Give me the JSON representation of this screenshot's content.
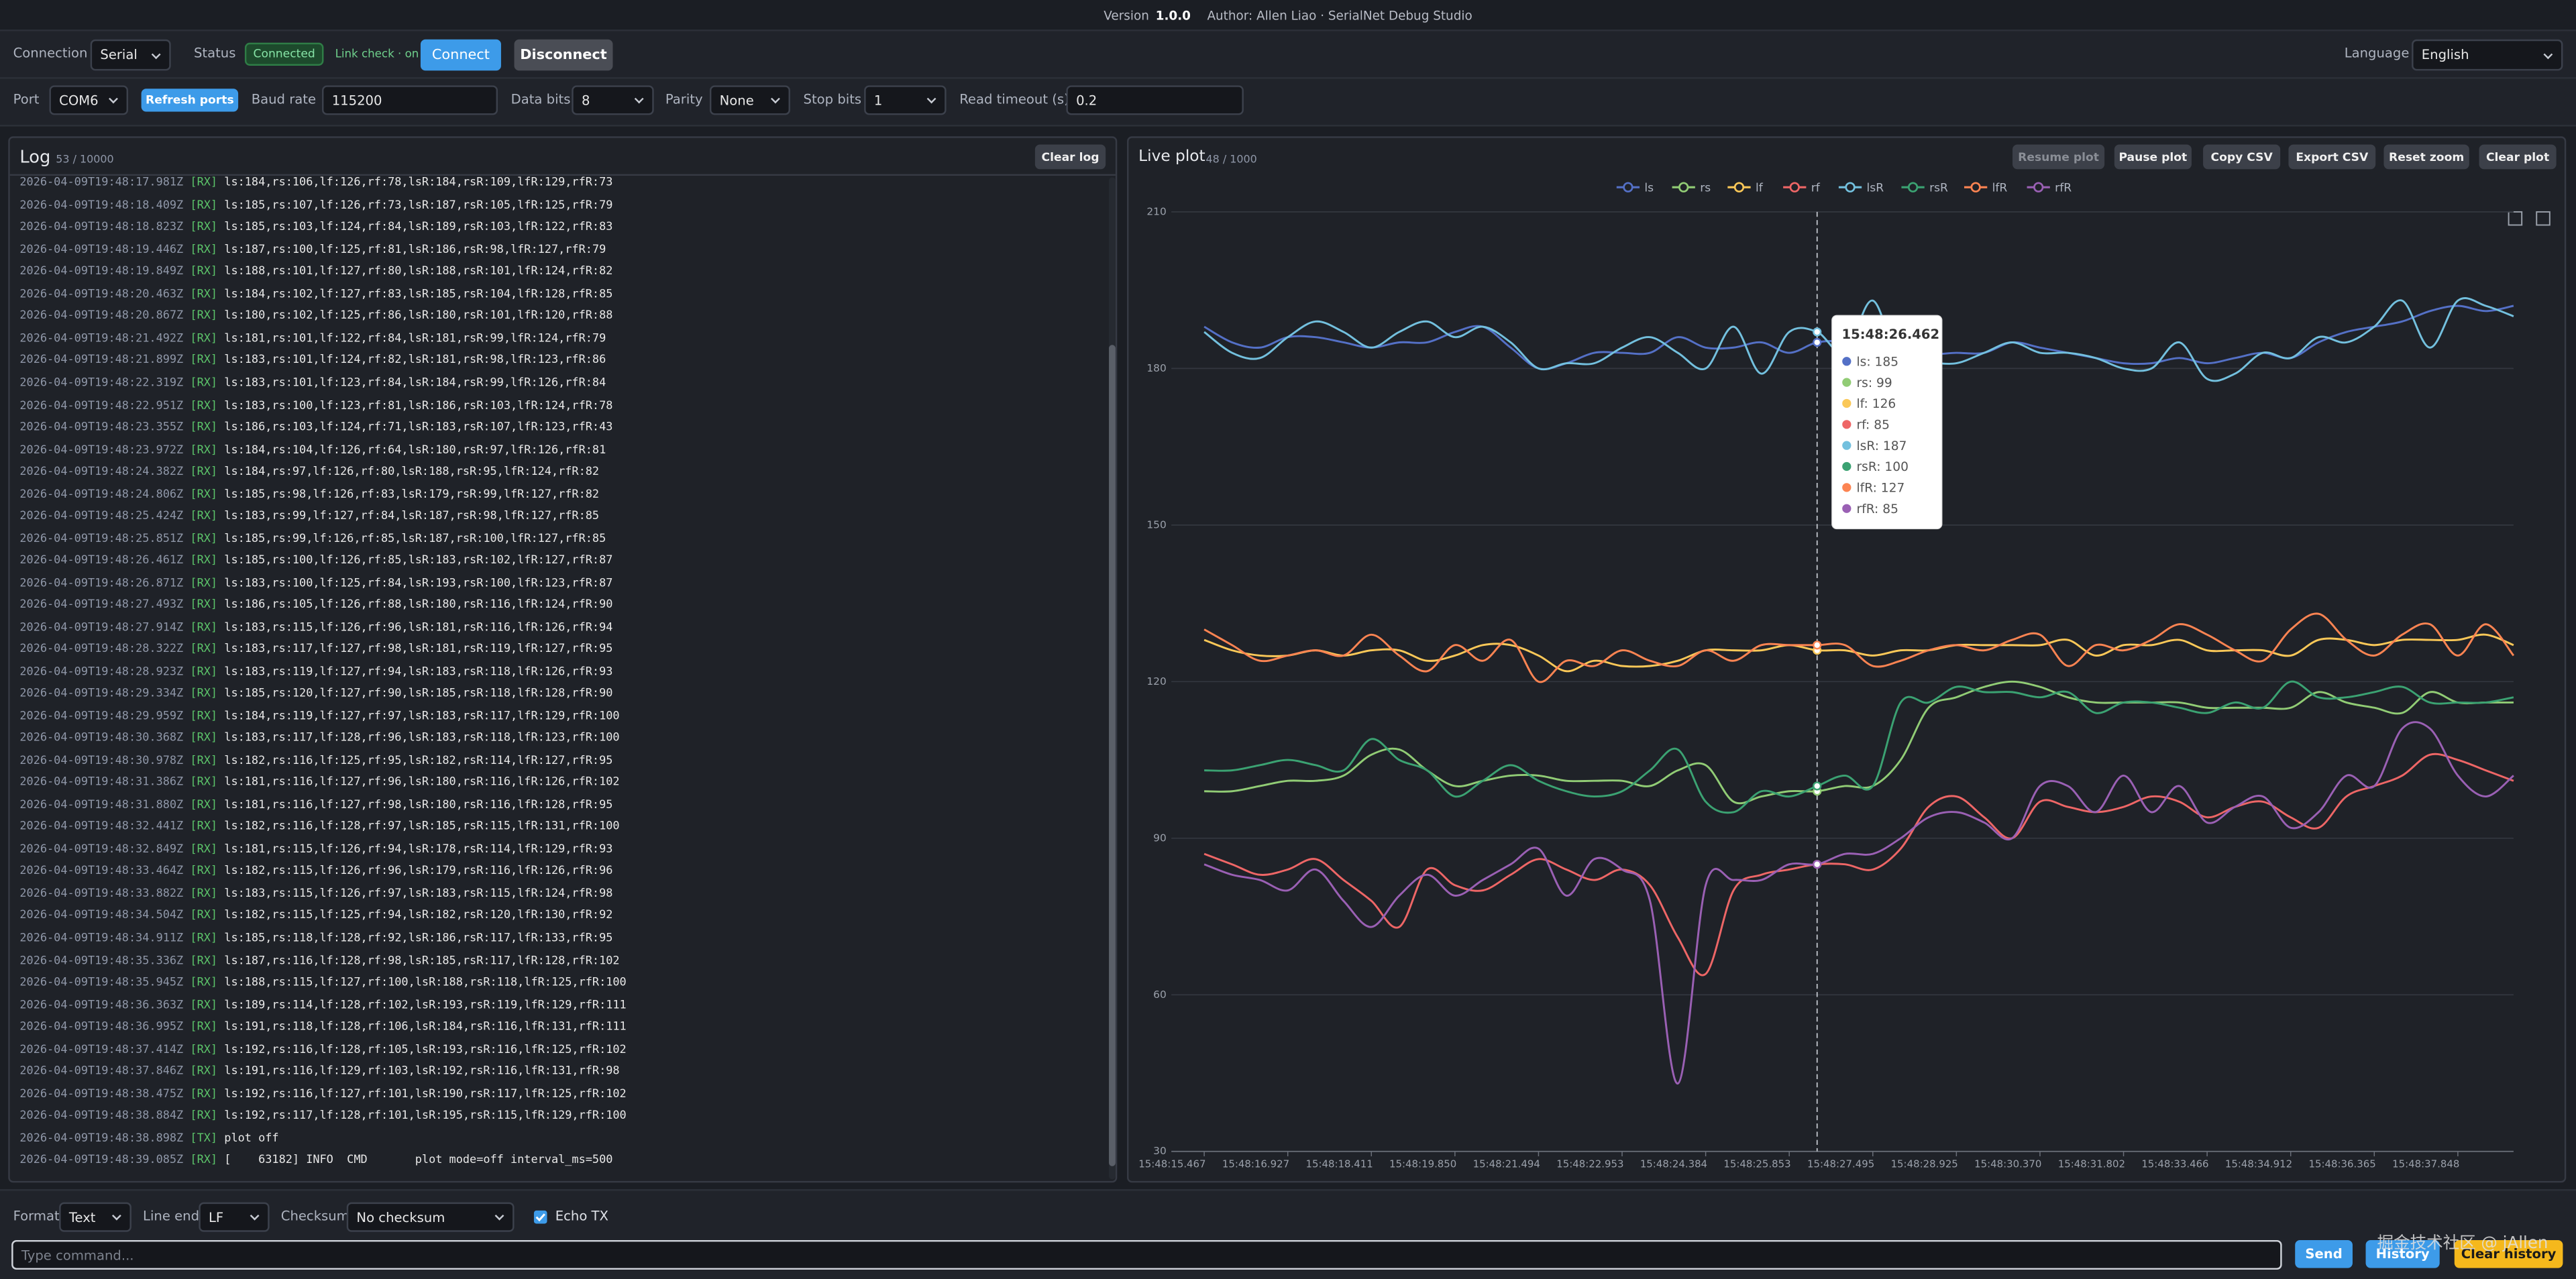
{
  "header": {
    "version_label": "Version",
    "version": "1.0.0",
    "author": "Author: Allen Liao · SerialNet Debug Studio"
  },
  "connection": {
    "label": "Connection",
    "mode": "Serial",
    "status_label": "Status",
    "status": "Connected",
    "link_check": "Link check · on",
    "connect": "Connect",
    "disconnect": "Disconnect",
    "language_label": "Language",
    "language": "English"
  },
  "port_settings": {
    "port_label": "Port",
    "port": "COM6",
    "refresh": "Refresh ports",
    "baud_label": "Baud rate",
    "baud": "115200",
    "data_bits_label": "Data bits",
    "data_bits": "8",
    "parity_label": "Parity",
    "parity": "None",
    "stop_bits_label": "Stop bits",
    "stop_bits": "1",
    "timeout_label": "Read timeout (s)",
    "timeout": "0.2"
  },
  "log": {
    "title": "Log",
    "count": "53 / 10000",
    "clear": "Clear log",
    "lines": [
      {
        "time": "2026-04-09T19:48:17.981Z",
        "dir": "[RX]",
        "text": "ls:184,rs:106,lf:126,rf:78,lsR:184,rsR:109,lfR:129,rfR:73"
      },
      {
        "time": "2026-04-09T19:48:18.409Z",
        "dir": "[RX]",
        "text": "ls:185,rs:107,lf:126,rf:73,lsR:187,rsR:105,lfR:125,rfR:79"
      },
      {
        "time": "2026-04-09T19:48:18.823Z",
        "dir": "[RX]",
        "text": "ls:185,rs:103,lf:124,rf:84,lsR:189,rsR:103,lfR:122,rfR:83"
      },
      {
        "time": "2026-04-09T19:48:19.446Z",
        "dir": "[RX]",
        "text": "ls:187,rs:100,lf:125,rf:81,lsR:186,rsR:98,lfR:127,rfR:79"
      },
      {
        "time": "2026-04-09T19:48:19.849Z",
        "dir": "[RX]",
        "text": "ls:188,rs:101,lf:127,rf:80,lsR:188,rsR:101,lfR:124,rfR:82"
      },
      {
        "time": "2026-04-09T19:48:20.463Z",
        "dir": "[RX]",
        "text": "ls:184,rs:102,lf:127,rf:83,lsR:185,rsR:104,lfR:128,rfR:85"
      },
      {
        "time": "2026-04-09T19:48:20.867Z",
        "dir": "[RX]",
        "text": "ls:180,rs:102,lf:125,rf:86,lsR:180,rsR:101,lfR:120,rfR:88"
      },
      {
        "time": "2026-04-09T19:48:21.492Z",
        "dir": "[RX]",
        "text": "ls:181,rs:101,lf:122,rf:84,lsR:181,rsR:99,lfR:124,rfR:79"
      },
      {
        "time": "2026-04-09T19:48:21.899Z",
        "dir": "[RX]",
        "text": "ls:183,rs:101,lf:124,rf:82,lsR:181,rsR:98,lfR:123,rfR:86"
      },
      {
        "time": "2026-04-09T19:48:22.319Z",
        "dir": "[RX]",
        "text": "ls:183,rs:101,lf:123,rf:84,lsR:184,rsR:99,lfR:126,rfR:84"
      },
      {
        "time": "2026-04-09T19:48:22.951Z",
        "dir": "[RX]",
        "text": "ls:183,rs:100,lf:123,rf:81,lsR:186,rsR:103,lfR:124,rfR:78"
      },
      {
        "time": "2026-04-09T19:48:23.355Z",
        "dir": "[RX]",
        "text": "ls:186,rs:103,lf:124,rf:71,lsR:183,rsR:107,lfR:123,rfR:43"
      },
      {
        "time": "2026-04-09T19:48:23.972Z",
        "dir": "[RX]",
        "text": "ls:184,rs:104,lf:126,rf:64,lsR:180,rsR:97,lfR:126,rfR:81"
      },
      {
        "time": "2026-04-09T19:48:24.382Z",
        "dir": "[RX]",
        "text": "ls:184,rs:97,lf:126,rf:80,lsR:188,rsR:95,lfR:124,rfR:82"
      },
      {
        "time": "2026-04-09T19:48:24.806Z",
        "dir": "[RX]",
        "text": "ls:185,rs:98,lf:126,rf:83,lsR:179,rsR:99,lfR:127,rfR:82"
      },
      {
        "time": "2026-04-09T19:48:25.424Z",
        "dir": "[RX]",
        "text": "ls:183,rs:99,lf:127,rf:84,lsR:187,rsR:98,lfR:127,rfR:85"
      },
      {
        "time": "2026-04-09T19:48:25.851Z",
        "dir": "[RX]",
        "text": "ls:185,rs:99,lf:126,rf:85,lsR:187,rsR:100,lfR:127,rfR:85"
      },
      {
        "time": "2026-04-09T19:48:26.461Z",
        "dir": "[RX]",
        "text": "ls:185,rs:100,lf:126,rf:85,lsR:183,rsR:102,lfR:127,rfR:87"
      },
      {
        "time": "2026-04-09T19:48:26.871Z",
        "dir": "[RX]",
        "text": "ls:183,rs:100,lf:125,rf:84,lsR:193,rsR:100,lfR:123,rfR:87"
      },
      {
        "time": "2026-04-09T19:48:27.493Z",
        "dir": "[RX]",
        "text": "ls:186,rs:105,lf:126,rf:88,lsR:180,rsR:116,lfR:124,rfR:90"
      },
      {
        "time": "2026-04-09T19:48:27.914Z",
        "dir": "[RX]",
        "text": "ls:183,rs:115,lf:126,rf:96,lsR:181,rsR:116,lfR:126,rfR:94"
      },
      {
        "time": "2026-04-09T19:48:28.322Z",
        "dir": "[RX]",
        "text": "ls:183,rs:117,lf:127,rf:98,lsR:181,rsR:119,lfR:127,rfR:95"
      },
      {
        "time": "2026-04-09T19:48:28.923Z",
        "dir": "[RX]",
        "text": "ls:183,rs:119,lf:127,rf:94,lsR:183,rsR:118,lfR:126,rfR:93"
      },
      {
        "time": "2026-04-09T19:48:29.334Z",
        "dir": "[RX]",
        "text": "ls:185,rs:120,lf:127,rf:90,lsR:185,rsR:118,lfR:128,rfR:90"
      },
      {
        "time": "2026-04-09T19:48:29.959Z",
        "dir": "[RX]",
        "text": "ls:184,rs:119,lf:127,rf:97,lsR:183,rsR:117,lfR:129,rfR:100"
      },
      {
        "time": "2026-04-09T19:48:30.368Z",
        "dir": "[RX]",
        "text": "ls:183,rs:117,lf:128,rf:96,lsR:183,rsR:118,lfR:123,rfR:100"
      },
      {
        "time": "2026-04-09T19:48:30.978Z",
        "dir": "[RX]",
        "text": "ls:182,rs:116,lf:125,rf:95,lsR:182,rsR:114,lfR:127,rfR:95"
      },
      {
        "time": "2026-04-09T19:48:31.386Z",
        "dir": "[RX]",
        "text": "ls:181,rs:116,lf:127,rf:96,lsR:180,rsR:116,lfR:126,rfR:102"
      },
      {
        "time": "2026-04-09T19:48:31.880Z",
        "dir": "[RX]",
        "text": "ls:181,rs:116,lf:127,rf:98,lsR:180,rsR:116,lfR:128,rfR:95"
      },
      {
        "time": "2026-04-09T19:48:32.441Z",
        "dir": "[RX]",
        "text": "ls:182,rs:116,lf:128,rf:97,lsR:185,rsR:115,lfR:131,rfR:100"
      },
      {
        "time": "2026-04-09T19:48:32.849Z",
        "dir": "[RX]",
        "text": "ls:181,rs:115,lf:126,rf:94,lsR:178,rsR:114,lfR:129,rfR:93"
      },
      {
        "time": "2026-04-09T19:48:33.464Z",
        "dir": "[RX]",
        "text": "ls:182,rs:115,lf:126,rf:96,lsR:179,rsR:116,lfR:126,rfR:96"
      },
      {
        "time": "2026-04-09T19:48:33.882Z",
        "dir": "[RX]",
        "text": "ls:183,rs:115,lf:126,rf:97,lsR:183,rsR:115,lfR:124,rfR:98"
      },
      {
        "time": "2026-04-09T19:48:34.504Z",
        "dir": "[RX]",
        "text": "ls:182,rs:115,lf:125,rf:94,lsR:182,rsR:120,lfR:130,rfR:92"
      },
      {
        "time": "2026-04-09T19:48:34.911Z",
        "dir": "[RX]",
        "text": "ls:185,rs:118,lf:128,rf:92,lsR:186,rsR:117,lfR:133,rfR:95"
      },
      {
        "time": "2026-04-09T19:48:35.336Z",
        "dir": "[RX]",
        "text": "ls:187,rs:116,lf:128,rf:98,lsR:185,rsR:117,lfR:128,rfR:102"
      },
      {
        "time": "2026-04-09T19:48:35.945Z",
        "dir": "[RX]",
        "text": "ls:188,rs:115,lf:127,rf:100,lsR:188,rsR:118,lfR:125,rfR:100"
      },
      {
        "time": "2026-04-09T19:48:36.363Z",
        "dir": "[RX]",
        "text": "ls:189,rs:114,lf:128,rf:102,lsR:193,rsR:119,lfR:129,rfR:111"
      },
      {
        "time": "2026-04-09T19:48:36.995Z",
        "dir": "[RX]",
        "text": "ls:191,rs:118,lf:128,rf:106,lsR:184,rsR:116,lfR:131,rfR:111"
      },
      {
        "time": "2026-04-09T19:48:37.414Z",
        "dir": "[RX]",
        "text": "ls:192,rs:116,lf:128,rf:105,lsR:193,rsR:116,lfR:125,rfR:102"
      },
      {
        "time": "2026-04-09T19:48:37.846Z",
        "dir": "[RX]",
        "text": "ls:191,rs:116,lf:129,rf:103,lsR:192,rsR:116,lfR:131,rfR:98"
      },
      {
        "time": "2026-04-09T19:48:38.475Z",
        "dir": "[RX]",
        "text": "ls:192,rs:116,lf:127,rf:101,lsR:190,rsR:117,lfR:125,rfR:102"
      },
      {
        "time": "2026-04-09T19:48:38.884Z",
        "dir": "[RX]",
        "text": "ls:192,rs:117,lf:128,rf:101,lsR:195,rsR:115,lfR:129,rfR:100"
      },
      {
        "time": "2026-04-09T19:48:38.898Z",
        "dir": "[TX]",
        "text": "plot off"
      },
      {
        "time": "2026-04-09T19:48:39.085Z",
        "dir": "[RX]",
        "text": "[    63182] INFO  CMD       plot mode=off interval_ms=500"
      }
    ]
  },
  "plot_panel": {
    "title": "Live plot",
    "count": "48 / 1000",
    "buttons": [
      "Resume plot",
      "Pause plot",
      "Copy CSV",
      "Export CSV",
      "Reset zoom",
      "Clear plot"
    ]
  },
  "chart_data": {
    "type": "line",
    "smooth": true,
    "grid": true,
    "legend": "top",
    "categories": [
      "15:48:15.467",
      null,
      null,
      "15:48:16.927",
      null,
      null,
      "15:48:18.411",
      null,
      null,
      "15:48:19.850",
      null,
      null,
      "15:48:21.494",
      null,
      null,
      "15:48:22.953",
      null,
      null,
      "15:48:24.384",
      null,
      null,
      "15:48:25.853",
      null,
      null,
      "15:48:27.495",
      null,
      null,
      "15:48:28.925",
      null,
      null,
      "15:48:30.370",
      null,
      null,
      "15:48:31.802",
      null,
      null,
      "15:48:33.466",
      null,
      null,
      "15:48:34.912",
      null,
      null,
      "15:48:36.365",
      null,
      null,
      "15:48:37.848",
      null,
      null
    ],
    "ylim": [
      30,
      210
    ],
    "yticks": [
      30,
      60,
      90,
      120,
      150,
      180,
      210
    ],
    "series": [
      {
        "name": "ls",
        "color": "#5470c6",
        "values": [
          188,
          185,
          184,
          186,
          186,
          185,
          184,
          185,
          185,
          187,
          188,
          184,
          180,
          181,
          183,
          183,
          183,
          186,
          184,
          184,
          185,
          183,
          185,
          185,
          183,
          186,
          183,
          183,
          183,
          185,
          184,
          183,
          182,
          181,
          181,
          182,
          181,
          182,
          183,
          182,
          185,
          187,
          188,
          189,
          191,
          192,
          191,
          192
        ]
      },
      {
        "name": "rs",
        "color": "#91cc75",
        "values": [
          99,
          99,
          100,
          101,
          101,
          102,
          106,
          107,
          103,
          100,
          101,
          102,
          102,
          101,
          101,
          101,
          100,
          103,
          104,
          97,
          98,
          99,
          99,
          100,
          100,
          105,
          115,
          117,
          119,
          120,
          119,
          117,
          116,
          116,
          116,
          116,
          115,
          115,
          115,
          115,
          118,
          116,
          115,
          114,
          118,
          116,
          116,
          116
        ]
      },
      {
        "name": "lf",
        "color": "#fac858",
        "values": [
          128,
          126,
          125,
          125,
          126,
          125,
          126,
          126,
          124,
          125,
          127,
          127,
          125,
          122,
          124,
          123,
          123,
          124,
          126,
          126,
          126,
          127,
          126,
          126,
          125,
          126,
          126,
          127,
          127,
          127,
          127,
          128,
          125,
          127,
          127,
          128,
          126,
          126,
          126,
          125,
          128,
          128,
          127,
          128,
          128,
          128,
          129,
          127
        ]
      },
      {
        "name": "rf",
        "color": "#ee6666",
        "values": [
          87,
          85,
          83,
          84,
          86,
          82,
          78,
          73,
          84,
          81,
          80,
          83,
          86,
          84,
          82,
          84,
          81,
          71,
          64,
          80,
          83,
          84,
          85,
          85,
          84,
          88,
          96,
          98,
          94,
          90,
          97,
          96,
          95,
          96,
          98,
          97,
          94,
          96,
          97,
          94,
          92,
          98,
          100,
          102,
          106,
          105,
          103,
          101
        ]
      },
      {
        "name": "lsR",
        "color": "#73c0de",
        "values": [
          187,
          183,
          182,
          186,
          189,
          187,
          184,
          187,
          189,
          186,
          188,
          185,
          180,
          181,
          181,
          184,
          186,
          183,
          180,
          188,
          179,
          187,
          187,
          183,
          193,
          180,
          181,
          181,
          183,
          185,
          183,
          183,
          182,
          180,
          180,
          185,
          178,
          179,
          183,
          182,
          186,
          185,
          188,
          193,
          184,
          193,
          192,
          190
        ]
      },
      {
        "name": "rsR",
        "color": "#3ba272",
        "values": [
          103,
          103,
          104,
          105,
          104,
          103,
          109,
          105,
          103,
          98,
          101,
          104,
          101,
          99,
          98,
          99,
          103,
          107,
          97,
          95,
          99,
          98,
          100,
          102,
          100,
          116,
          116,
          119,
          118,
          118,
          117,
          118,
          114,
          116,
          116,
          115,
          114,
          116,
          115,
          120,
          117,
          117,
          118,
          119,
          116,
          116,
          116,
          117
        ]
      },
      {
        "name": "lfR",
        "color": "#fc8452",
        "values": [
          130,
          127,
          124,
          125,
          126,
          125,
          129,
          125,
          122,
          127,
          124,
          128,
          120,
          124,
          123,
          126,
          124,
          123,
          126,
          124,
          127,
          127,
          127,
          127,
          123,
          124,
          126,
          127,
          126,
          128,
          129,
          123,
          127,
          126,
          128,
          131,
          129,
          126,
          124,
          130,
          133,
          128,
          125,
          129,
          131,
          125,
          131,
          125
        ]
      },
      {
        "name": "rfR",
        "color": "#9a60b4",
        "values": [
          85,
          83,
          82,
          80,
          84,
          78,
          73,
          79,
          83,
          79,
          82,
          85,
          88,
          79,
          86,
          84,
          78,
          43,
          81,
          82,
          82,
          85,
          85,
          87,
          87,
          90,
          94,
          95,
          93,
          90,
          100,
          100,
          95,
          102,
          95,
          100,
          93,
          96,
          98,
          92,
          95,
          102,
          100,
          111,
          111,
          102,
          98,
          102
        ]
      }
    ],
    "tooltip": {
      "index": 22,
      "title": "15:48:26.462",
      "items": [
        "ls: 185",
        "rs: 99",
        "lf: 126",
        "rf: 85",
        "lsR: 187",
        "rsR: 100",
        "lfR: 127",
        "rfR: 85"
      ]
    }
  },
  "footer": {
    "format_label": "Format",
    "format": "Text",
    "line_end_label": "Line end",
    "line_end": "LF",
    "checksum_label": "Checksum",
    "checksum": "No checksum",
    "echo_tx": "Echo TX",
    "placeholder": "Type command...",
    "send": "Send",
    "history": "History",
    "clear_history": "Clear history"
  },
  "watermark": "掘金技术社区 @ jAllen"
}
